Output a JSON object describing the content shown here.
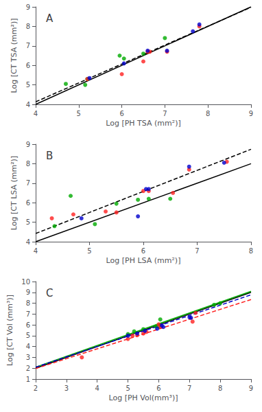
{
  "chart_data": [
    {
      "type": "scatter",
      "title": "A",
      "xlabel": "Log [PH TSA (mm²)]",
      "ylabel": "Log [CT TSA (mm²)]",
      "xlim": [
        4,
        9
      ],
      "ylim": [
        4,
        9
      ],
      "xticks": [
        4,
        5,
        6,
        7,
        8,
        9
      ],
      "yticks": [
        4,
        5,
        6,
        7,
        8,
        9
      ],
      "grid": false,
      "series": [
        {
          "type": "line",
          "color": "#000000",
          "line_style": "solid",
          "x": [
            4,
            9
          ],
          "values": [
            4,
            9
          ]
        },
        {
          "type": "line",
          "color": "#000000",
          "line_style": "dashed",
          "x": [
            4,
            9
          ],
          "values": [
            4.13,
            8.98
          ]
        },
        {
          "type": "scatter",
          "color": "#00aa00",
          "marker": "circle",
          "x": [
            4.7,
            5.15,
            5.2,
            5.95,
            6.05,
            6.5,
            7.0
          ],
          "values": [
            5.05,
            5.0,
            5.3,
            6.5,
            6.35,
            6.6,
            7.4
          ]
        },
        {
          "type": "scatter",
          "color": "#ff2020",
          "marker": "circle",
          "x": [
            5.2,
            6.0,
            6.5,
            6.6,
            6.65,
            7.05,
            7.8
          ],
          "values": [
            5.3,
            5.55,
            6.2,
            6.7,
            6.7,
            6.7,
            8.0
          ]
        },
        {
          "type": "scatter",
          "color": "#0000cc",
          "marker": "circle",
          "x": [
            5.25,
            6.05,
            6.6,
            7.05,
            7.65,
            7.8
          ],
          "values": [
            5.35,
            6.1,
            6.75,
            6.75,
            7.75,
            8.1
          ]
        }
      ]
    },
    {
      "type": "scatter",
      "title": "B",
      "xlabel": "Log [PH LSA (mm²)]",
      "ylabel": "Log [CT LSA (mm²)]",
      "xlim": [
        4,
        8
      ],
      "ylim": [
        4,
        9
      ],
      "xticks": [
        4,
        5,
        6,
        7,
        8
      ],
      "yticks": [
        4,
        5,
        6,
        7,
        8,
        9
      ],
      "grid": false,
      "series": [
        {
          "type": "line",
          "color": "#000000",
          "line_style": "solid",
          "x": [
            4,
            8
          ],
          "values": [
            4,
            8
          ]
        },
        {
          "type": "line",
          "color": "#000000",
          "line_style": "dashed",
          "x": [
            4,
            8
          ],
          "values": [
            4.42,
            8.74
          ]
        },
        {
          "type": "scatter",
          "color": "#00aa00",
          "marker": "circle",
          "x": [
            4.35,
            4.65,
            5.1,
            5.5,
            5.9,
            6.1,
            6.5
          ],
          "values": [
            4.8,
            6.35,
            4.9,
            5.95,
            6.15,
            6.2,
            6.2
          ]
        },
        {
          "type": "scatter",
          "color": "#ff2020",
          "marker": "circle",
          "x": [
            4.3,
            4.7,
            5.3,
            5.5,
            6.0,
            6.1,
            6.55,
            6.85,
            7.55
          ],
          "values": [
            5.2,
            5.4,
            5.55,
            5.5,
            6.6,
            6.6,
            6.5,
            7.7,
            8.1
          ]
        },
        {
          "type": "scatter",
          "color": "#0000cc",
          "marker": "circle",
          "x": [
            4.85,
            5.9,
            6.05,
            6.1,
            6.85,
            7.5
          ],
          "values": [
            5.2,
            5.3,
            6.7,
            6.7,
            7.85,
            8.05
          ]
        }
      ]
    },
    {
      "type": "scatter",
      "title": "C",
      "xlabel": "Log [PH Vol(mm³)]",
      "ylabel": "Log [CT Vol (mm³)]",
      "xlim": [
        2,
        9
      ],
      "ylim": [
        1,
        10
      ],
      "xticks": [
        2,
        3,
        4,
        5,
        6,
        7,
        8,
        9
      ],
      "yticks": [
        1,
        2,
        3,
        4,
        5,
        6,
        7,
        8,
        9,
        10
      ],
      "grid": false,
      "series": [
        {
          "type": "line",
          "color": "#000000",
          "line_style": "solid",
          "x": [
            2,
            9
          ],
          "values": [
            2,
            9
          ]
        },
        {
          "type": "line",
          "color": "#00aa00",
          "line_style": "solid",
          "x": [
            2,
            9
          ],
          "values": [
            2.1,
            9.1
          ]
        },
        {
          "type": "line",
          "color": "#0000cc",
          "line_style": "dashed",
          "x": [
            2,
            9
          ],
          "values": [
            2.09,
            8.775
          ]
        },
        {
          "type": "line",
          "color": "#ff2020",
          "line_style": "dashed",
          "x": [
            2,
            9
          ],
          "values": [
            1.97,
            8.34
          ]
        },
        {
          "type": "scatter",
          "color": "#00aa00",
          "marker": "circle",
          "x": [
            5.0,
            5.2,
            5.5,
            5.9,
            6.0,
            6.05,
            7.8,
            8.0
          ],
          "values": [
            5.15,
            5.4,
            5.6,
            5.85,
            5.85,
            6.5,
            7.85,
            8.0
          ]
        },
        {
          "type": "scatter",
          "color": "#ff2020",
          "marker": "circle",
          "x": [
            3.5,
            5.0,
            5.15,
            5.3,
            5.5,
            5.6,
            6.0,
            6.05,
            7.1,
            7.2
          ],
          "values": [
            3.0,
            4.7,
            5.0,
            5.05,
            5.2,
            5.35,
            6.05,
            5.85,
            6.3,
            7.1
          ]
        },
        {
          "type": "scatter",
          "color": "#0000cc",
          "marker": "circle",
          "x": [
            5.0,
            5.3,
            5.55,
            5.95,
            6.1,
            6.15,
            7.0,
            7.05
          ],
          "values": [
            5.0,
            5.2,
            5.45,
            5.65,
            5.95,
            5.8,
            6.7,
            6.65
          ]
        }
      ]
    }
  ]
}
